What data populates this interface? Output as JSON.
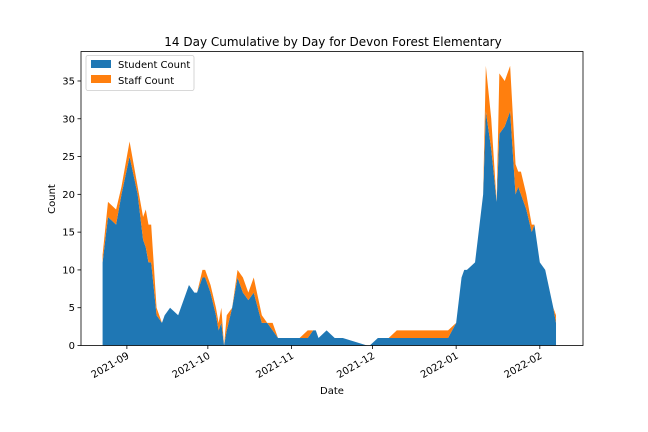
{
  "chart_data": {
    "type": "area",
    "stacked": true,
    "title": "14 Day Cumulative by Day for Devon Forest Elementary",
    "xlabel": "Date",
    "ylabel": "Count",
    "xlim": [
      "2021-08-15",
      "2022-02-17"
    ],
    "ylim": [
      0,
      38.9
    ],
    "yticks": [
      0,
      5,
      10,
      15,
      20,
      25,
      30,
      35
    ],
    "xticks": [
      {
        "date": "2021-09-01",
        "label": "2021-09"
      },
      {
        "date": "2021-10-01",
        "label": "2021-10"
      },
      {
        "date": "2021-11-01",
        "label": "2021-11"
      },
      {
        "date": "2021-12-01",
        "label": "2021-12"
      },
      {
        "date": "2022-01-01",
        "label": "2022-01"
      },
      {
        "date": "2022-02-01",
        "label": "2022-02"
      }
    ],
    "legend_position": "upper-left",
    "grid": false,
    "x": [
      "2021-08-23",
      "2021-08-25",
      "2021-08-28",
      "2021-08-30",
      "2021-09-02",
      "2021-09-05",
      "2021-09-07",
      "2021-09-08",
      "2021-09-09",
      "2021-09-10",
      "2021-09-12",
      "2021-09-14",
      "2021-09-15",
      "2021-09-17",
      "2021-09-20",
      "2021-09-23",
      "2021-09-24",
      "2021-09-26",
      "2021-09-27",
      "2021-09-29",
      "2021-09-30",
      "2021-10-02",
      "2021-10-04",
      "2021-10-05",
      "2021-10-06",
      "2021-10-07",
      "2021-10-08",
      "2021-10-10",
      "2021-10-12",
      "2021-10-14",
      "2021-10-16",
      "2021-10-18",
      "2021-10-21",
      "2021-10-23",
      "2021-10-25",
      "2021-10-27",
      "2021-10-30",
      "2021-11-04",
      "2021-11-07",
      "2021-11-09",
      "2021-11-10",
      "2021-11-11",
      "2021-11-14",
      "2021-11-17",
      "2021-11-20",
      "2021-11-29",
      "2021-11-30",
      "2021-12-03",
      "2021-12-07",
      "2021-12-10",
      "2021-12-14",
      "2021-12-29",
      "2022-01-01",
      "2022-01-03",
      "2022-01-04",
      "2022-01-05",
      "2022-01-08",
      "2022-01-09",
      "2022-01-11",
      "2022-01-12",
      "2022-01-14",
      "2022-01-16",
      "2022-01-17",
      "2022-01-19",
      "2022-01-21",
      "2022-01-23",
      "2022-01-24",
      "2022-01-25",
      "2022-01-27",
      "2022-01-29",
      "2022-01-30",
      "2022-02-01",
      "2022-02-03",
      "2022-02-06",
      "2022-02-07"
    ],
    "series": [
      {
        "name": "Student Count",
        "color": "#1f77b4",
        "values": [
          11,
          17,
          16,
          20,
          25,
          20,
          14,
          13,
          11,
          11,
          4,
          3,
          4,
          5,
          4,
          7,
          8,
          7,
          7,
          9,
          9,
          7,
          4,
          2,
          3,
          0,
          2,
          5,
          9,
          7,
          6,
          7,
          3,
          3,
          2,
          1,
          1,
          1,
          1,
          2,
          2,
          1,
          2,
          1,
          1,
          0,
          0,
          1,
          1,
          1,
          1,
          1,
          3,
          9,
          10,
          10,
          11,
          14,
          20,
          31,
          26,
          19,
          28,
          29,
          31,
          20,
          21,
          20,
          18,
          15,
          16,
          11,
          10,
          5,
          3
        ]
      },
      {
        "name": "Staff Count",
        "color": "#ff7f0e",
        "values": [
          1,
          2,
          2,
          1,
          2,
          1,
          3,
          5,
          5,
          5,
          1,
          0,
          0,
          0,
          0,
          0,
          0,
          0,
          0,
          1,
          1,
          1,
          1,
          1,
          2,
          0,
          2,
          0,
          1,
          2,
          1,
          2,
          1,
          0,
          1,
          0,
          0,
          0,
          1,
          0,
          0,
          0,
          0,
          0,
          0,
          0,
          0,
          0,
          0,
          1,
          1,
          1,
          0,
          0,
          0,
          0,
          0,
          0,
          0,
          6,
          4,
          0,
          8,
          6,
          6,
          4,
          2,
          3,
          2,
          1,
          0,
          0,
          0,
          0,
          1
        ]
      }
    ]
  }
}
